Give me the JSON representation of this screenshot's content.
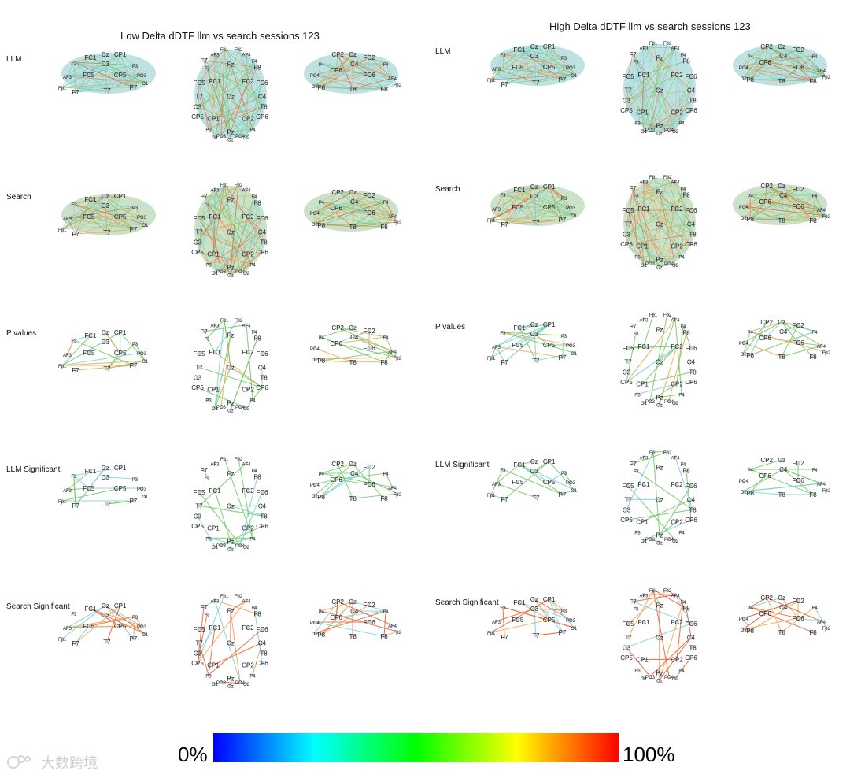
{
  "panels": [
    {
      "title": "Low Delta dDTF llm vs search sessions 123",
      "row_labels": [
        "LLM",
        "Search",
        "P values",
        "LLM Significant",
        "Search Significant"
      ]
    },
    {
      "title": "High Delta dDTF llm vs search sessions 123",
      "row_labels": [
        "LLM",
        "Search",
        "P values",
        "LLM Significant",
        "Search Significant"
      ]
    }
  ],
  "views": [
    {
      "name": "left-lateral",
      "electrodes": [
        "FC1",
        "Cz",
        "CP1",
        "C3",
        "F3",
        "P3",
        "AF3",
        "F7",
        "FC5",
        "CP5",
        "PO3",
        "Fp1",
        "T7",
        "P7",
        "O1"
      ]
    },
    {
      "name": "top",
      "electrodes": [
        "Fp1",
        "Fp2",
        "AF3",
        "AF4",
        "F3",
        "Fz",
        "F4",
        "F7",
        "F8",
        "FC5",
        "FC1",
        "FC2",
        "FC6",
        "T7",
        "C3",
        "Cz",
        "C4",
        "T8",
        "CP5",
        "CP1",
        "CP2",
        "CP6",
        "P3",
        "Pz",
        "P4",
        "PO3",
        "PO4",
        "O1",
        "Oz",
        "O2"
      ]
    },
    {
      "name": "right-lateral",
      "electrodes": [
        "CP2",
        "Cz",
        "FC2",
        "P4",
        "C4",
        "F4",
        "PO4",
        "CP6",
        "FC6",
        "F8",
        "AF4",
        "O2",
        "P8",
        "T8",
        "Fp2"
      ]
    }
  ],
  "colorbar": {
    "min_label": "0%",
    "max_label": "100%",
    "stops": [
      "#0000ff",
      "#00ffff",
      "#00ff00",
      "#ffff00",
      "#ff0000"
    ]
  },
  "watermark": "大数跨境",
  "colors": {
    "bg_teal": "#a9d8d6",
    "edge_red": "#e8643a",
    "edge_orange": "#f2a65a",
    "edge_green": "#76c86a",
    "edge_cyan": "#7fd1d8",
    "node": "#b9c3d6"
  }
}
